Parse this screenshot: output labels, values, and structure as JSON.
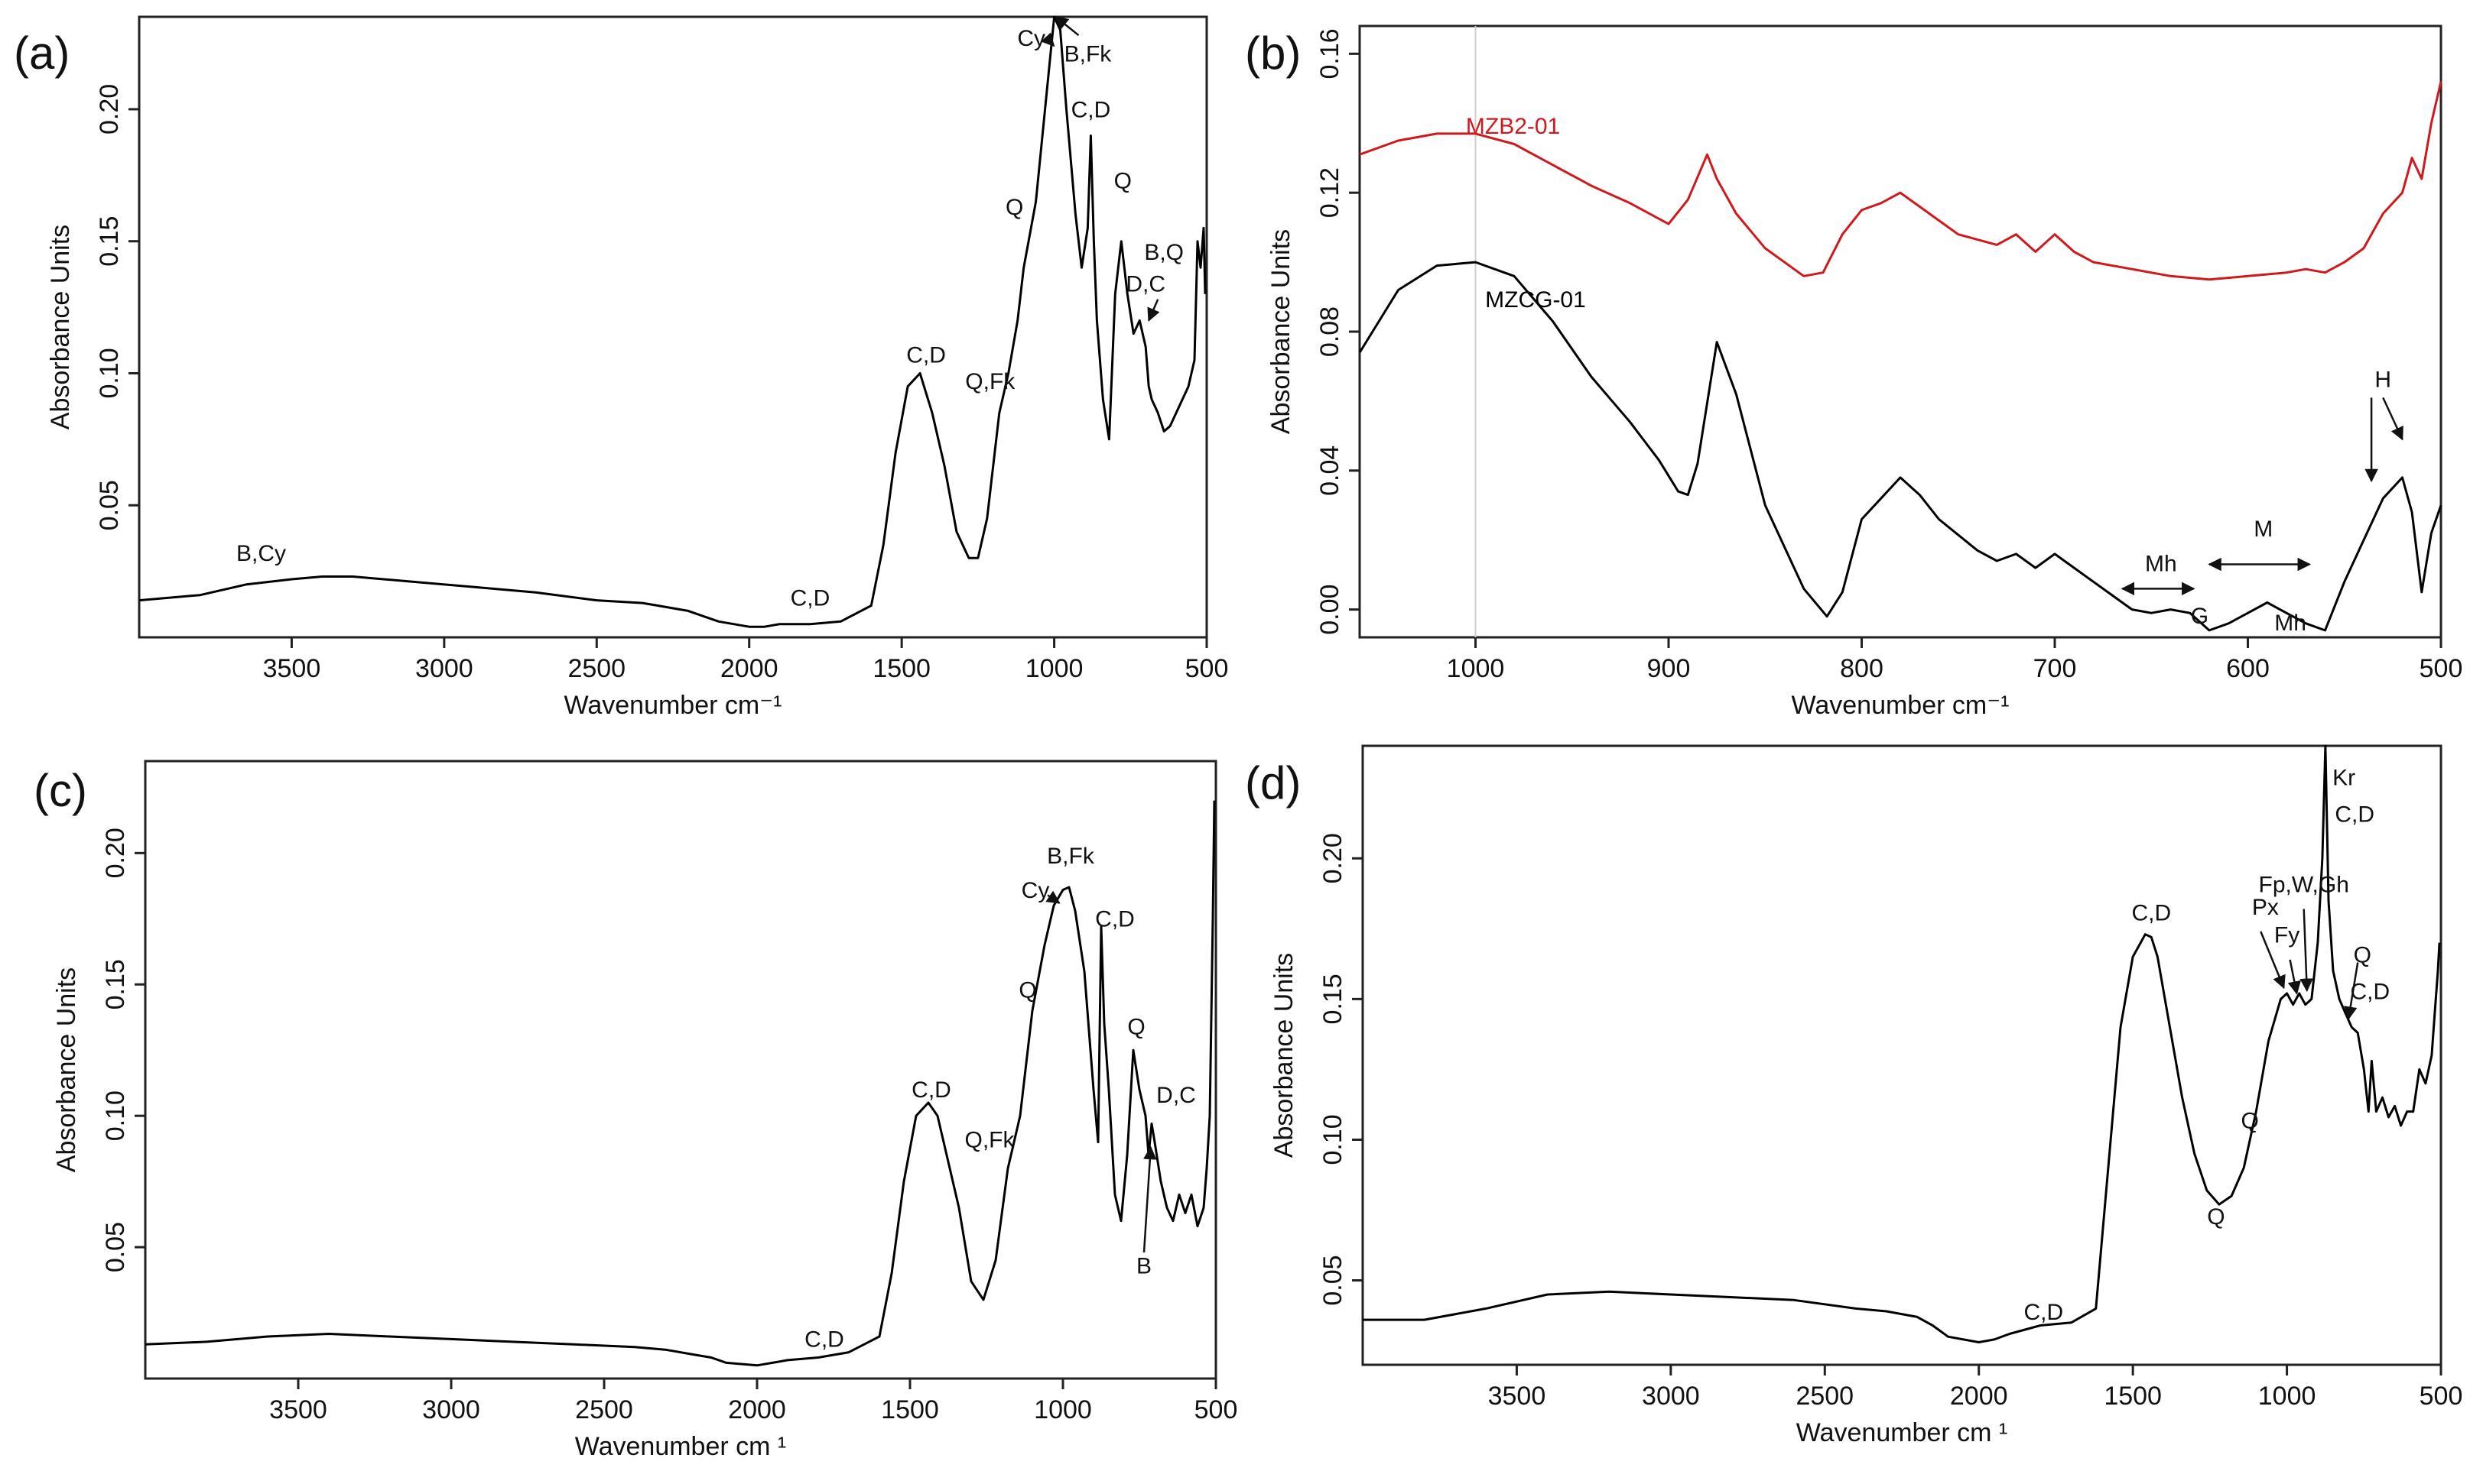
{
  "figure": {
    "background": "#ffffff"
  },
  "chart_data": [
    {
      "id": "a",
      "panel_label": "(a)",
      "type": "line",
      "xlabel": "Wavenumber cm⁻¹",
      "ylabel": "Absorbance Units",
      "xlim": [
        4000,
        500
      ],
      "ylim": [
        0.0,
        0.235
      ],
      "xticks": [
        3500,
        3000,
        2500,
        2000,
        1500,
        1000,
        500
      ],
      "xtick_labels": [
        "3500",
        "3000",
        "2500",
        "2000",
        "1500",
        "1000",
        "500"
      ],
      "yticks": [
        0.05,
        0.1,
        0.15,
        0.2
      ],
      "ytick_labels": [
        "0.05",
        "0.10",
        "0.15",
        "0.20"
      ],
      "series": [
        {
          "name": "spectrum",
          "color": "#000000",
          "x": [
            4000,
            3800,
            3650,
            3500,
            3400,
            3300,
            3100,
            2900,
            2700,
            2500,
            2350,
            2300,
            2200,
            2150,
            2100,
            2000,
            1950,
            1900,
            1800,
            1700,
            1600,
            1560,
            1520,
            1480,
            1440,
            1400,
            1360,
            1320,
            1280,
            1250,
            1220,
            1180,
            1150,
            1120,
            1100,
            1060,
            1030,
            1000,
            980,
            960,
            930,
            910,
            890,
            880,
            870,
            860,
            840,
            820,
            800,
            780,
            760,
            740,
            720,
            700,
            690,
            680,
            660,
            640,
            620,
            600,
            580,
            560,
            540,
            530,
            520,
            510,
            505
          ],
          "y": [
            0.014,
            0.016,
            0.02,
            0.022,
            0.023,
            0.023,
            0.021,
            0.019,
            0.017,
            0.014,
            0.013,
            0.012,
            0.01,
            0.008,
            0.006,
            0.004,
            0.004,
            0.005,
            0.005,
            0.006,
            0.012,
            0.035,
            0.07,
            0.095,
            0.1,
            0.085,
            0.065,
            0.04,
            0.03,
            0.03,
            0.045,
            0.085,
            0.1,
            0.12,
            0.14,
            0.165,
            0.2,
            0.235,
            0.23,
            0.2,
            0.16,
            0.14,
            0.155,
            0.19,
            0.15,
            0.12,
            0.09,
            0.075,
            0.13,
            0.15,
            0.13,
            0.115,
            0.12,
            0.11,
            0.095,
            0.09,
            0.085,
            0.078,
            0.08,
            0.085,
            0.09,
            0.095,
            0.105,
            0.15,
            0.14,
            0.155,
            0.13
          ]
        }
      ],
      "annotations": [
        {
          "text": "B,Cy",
          "x": 3600,
          "y": 0.029
        },
        {
          "text": "C,D",
          "x": 1800,
          "y": 0.012
        },
        {
          "text": "C,D",
          "x": 1420,
          "y": 0.104
        },
        {
          "text": "Q,Fk",
          "x": 1210,
          "y": 0.094
        },
        {
          "text": "Q",
          "x": 1130,
          "y": 0.16
        },
        {
          "text": "Cy",
          "x": 1075,
          "y": 0.224
        },
        {
          "text": "B,Fk",
          "x": 890,
          "y": 0.218
        },
        {
          "text": "C,D",
          "x": 880,
          "y": 0.197
        },
        {
          "text": "Q",
          "x": 775,
          "y": 0.17
        },
        {
          "text": "B,Q",
          "x": 640,
          "y": 0.143
        },
        {
          "text": "D,C",
          "x": 700,
          "y": 0.131
        }
      ],
      "arrows": [
        {
          "from": [
            1025,
            0.227
          ],
          "to": [
            1001,
            0.224
          ]
        },
        {
          "from": [
            920,
            0.228
          ],
          "to": [
            995,
            0.235
          ]
        },
        {
          "from": [
            660,
            0.128
          ],
          "to": [
            690,
            0.12
          ]
        }
      ]
    },
    {
      "id": "b",
      "panel_label": "(b)",
      "type": "line",
      "xlabel": "Wavenumber cm⁻¹",
      "ylabel": "Absorbance Units",
      "xlim": [
        1060,
        500
      ],
      "ylim": [
        -0.008,
        0.168
      ],
      "xticks": [
        1000,
        900,
        800,
        700,
        600,
        500
      ],
      "xtick_labels": [
        "1000",
        "900",
        "800",
        "700",
        "600",
        "500"
      ],
      "yticks": [
        0.0,
        0.04,
        0.08,
        0.12,
        0.16
      ],
      "ytick_labels": [
        "0.00",
        "0.04",
        "0.08",
        "0.12",
        "0.16"
      ],
      "reference_line_x": 1000,
      "series": [
        {
          "name": "MZB2-01",
          "color": "#d0191c",
          "x": [
            1060,
            1040,
            1020,
            1000,
            980,
            960,
            940,
            920,
            900,
            890,
            880,
            875,
            865,
            850,
            830,
            820,
            810,
            800,
            790,
            780,
            770,
            750,
            730,
            720,
            710,
            700,
            690,
            680,
            660,
            640,
            620,
            600,
            580,
            570,
            560,
            550,
            540,
            530,
            520,
            515,
            510,
            505,
            500
          ],
          "y": [
            0.131,
            0.135,
            0.137,
            0.137,
            0.134,
            0.128,
            0.122,
            0.117,
            0.111,
            0.118,
            0.131,
            0.124,
            0.114,
            0.104,
            0.096,
            0.097,
            0.108,
            0.115,
            0.117,
            0.12,
            0.116,
            0.108,
            0.105,
            0.108,
            0.103,
            0.108,
            0.103,
            0.1,
            0.098,
            0.096,
            0.095,
            0.096,
            0.097,
            0.098,
            0.097,
            0.1,
            0.104,
            0.114,
            0.12,
            0.13,
            0.124,
            0.14,
            0.152
          ]
        },
        {
          "name": "MZCG-01",
          "color": "#000000",
          "x": [
            1060,
            1040,
            1020,
            1000,
            980,
            960,
            940,
            920,
            905,
            895,
            890,
            885,
            875,
            865,
            850,
            830,
            818,
            810,
            800,
            790,
            780,
            770,
            760,
            740,
            730,
            720,
            710,
            700,
            695,
            690,
            680,
            670,
            660,
            650,
            640,
            630,
            620,
            610,
            600,
            590,
            580,
            570,
            560,
            550,
            540,
            530,
            520,
            515,
            510,
            505,
            500
          ],
          "y": [
            0.074,
            0.092,
            0.099,
            0.1,
            0.096,
            0.083,
            0.067,
            0.054,
            0.043,
            0.034,
            0.033,
            0.042,
            0.077,
            0.062,
            0.03,
            0.006,
            -0.002,
            0.005,
            0.026,
            0.032,
            0.038,
            0.033,
            0.026,
            0.017,
            0.014,
            0.016,
            0.012,
            0.016,
            0.014,
            0.012,
            0.008,
            0.004,
            0.0,
            -0.001,
            0.0,
            -0.001,
            -0.006,
            -0.004,
            -0.001,
            0.002,
            -0.001,
            -0.004,
            -0.006,
            0.008,
            0.02,
            0.032,
            0.038,
            0.028,
            0.005,
            0.022,
            0.03
          ]
        }
      ],
      "series_labels": [
        {
          "text": "MZB2-01",
          "color": "#d0191c",
          "x": 1005,
          "y": 0.137
        },
        {
          "text": "MZCG-01",
          "color": "#000000",
          "x": 995,
          "y": 0.087
        }
      ],
      "annotations": [
        {
          "text": "H",
          "x": 530,
          "y": 0.064
        },
        {
          "text": "M",
          "x": 592,
          "y": 0.021
        },
        {
          "text": "Mh",
          "x": 645,
          "y": 0.011
        },
        {
          "text": "G",
          "x": 625,
          "y": -0.004
        },
        {
          "text": "Mh",
          "x": 578,
          "y": -0.006
        }
      ],
      "arrows": [
        {
          "from": [
            536,
            0.061
          ],
          "to": [
            536,
            0.037
          ]
        },
        {
          "from": [
            530,
            0.061
          ],
          "to": [
            520,
            0.049
          ]
        }
      ],
      "double_arrows": [
        {
          "x1": 665,
          "x2": 628,
          "y": 0.006
        },
        {
          "x1": 620,
          "x2": 568,
          "y": 0.013
        }
      ]
    },
    {
      "id": "c",
      "panel_label": "(c)",
      "type": "line",
      "xlabel": "Wavenumber cm ¹",
      "ylabel": "Absorbance Units",
      "xlim": [
        4000,
        500
      ],
      "ylim": [
        0.0,
        0.235
      ],
      "xticks": [
        3500,
        3000,
        2500,
        2000,
        1500,
        1000,
        500
      ],
      "xtick_labels": [
        "3500",
        "3000",
        "2500",
        "2000",
        "1500",
        "1000",
        "500"
      ],
      "yticks": [
        0.05,
        0.1,
        0.15,
        0.2
      ],
      "ytick_labels": [
        "0.05",
        "0.10",
        "0.15",
        "0.20"
      ],
      "series": [
        {
          "name": "spectrum",
          "color": "#000000",
          "x": [
            4000,
            3800,
            3600,
            3400,
            3200,
            3000,
            2800,
            2600,
            2400,
            2300,
            2200,
            2150,
            2100,
            2000,
            1950,
            1900,
            1800,
            1700,
            1600,
            1560,
            1520,
            1480,
            1440,
            1410,
            1380,
            1340,
            1300,
            1260,
            1220,
            1180,
            1160,
            1140,
            1100,
            1060,
            1030,
            1000,
            980,
            960,
            930,
            900,
            885,
            875,
            865,
            850,
            830,
            810,
            790,
            770,
            750,
            730,
            720,
            710,
            700,
            680,
            660,
            640,
            620,
            600,
            580,
            560,
            540,
            530,
            520,
            510,
            505
          ],
          "y": [
            0.013,
            0.014,
            0.016,
            0.017,
            0.016,
            0.015,
            0.014,
            0.013,
            0.012,
            0.011,
            0.009,
            0.008,
            0.006,
            0.005,
            0.006,
            0.007,
            0.008,
            0.01,
            0.016,
            0.04,
            0.075,
            0.1,
            0.105,
            0.1,
            0.085,
            0.065,
            0.037,
            0.03,
            0.045,
            0.08,
            0.09,
            0.1,
            0.14,
            0.165,
            0.18,
            0.186,
            0.187,
            0.178,
            0.155,
            0.11,
            0.09,
            0.172,
            0.135,
            0.11,
            0.07,
            0.06,
            0.085,
            0.125,
            0.11,
            0.1,
            0.085,
            0.097,
            0.09,
            0.075,
            0.065,
            0.06,
            0.07,
            0.063,
            0.07,
            0.058,
            0.065,
            0.08,
            0.1,
            0.175,
            0.22
          ]
        }
      ],
      "annotations": [
        {
          "text": "C,D",
          "x": 1780,
          "y": 0.012
        },
        {
          "text": "C,D",
          "x": 1430,
          "y": 0.107
        },
        {
          "text": "Q,Fk",
          "x": 1240,
          "y": 0.088
        },
        {
          "text": "Q",
          "x": 1115,
          "y": 0.145
        },
        {
          "text": "Cy",
          "x": 1090,
          "y": 0.183
        },
        {
          "text": "B,Fk",
          "x": 975,
          "y": 0.196
        },
        {
          "text": "C,D",
          "x": 830,
          "y": 0.172
        },
        {
          "text": "Q",
          "x": 760,
          "y": 0.131
        },
        {
          "text": "D,C",
          "x": 630,
          "y": 0.105
        },
        {
          "text": "B",
          "x": 735,
          "y": 0.04
        }
      ],
      "arrows": [
        {
          "from": [
            1050,
            0.184
          ],
          "to": [
            1012,
            0.181
          ]
        },
        {
          "from": [
            735,
            0.048
          ],
          "to": [
            713,
            0.088
          ]
        }
      ]
    },
    {
      "id": "d",
      "panel_label": "(d)",
      "type": "line",
      "xlabel": "Wavenumber cm ¹",
      "ylabel": "Absorbance Units",
      "xlim": [
        4000,
        500
      ],
      "ylim": [
        0.02,
        0.24
      ],
      "xticks": [
        3500,
        3000,
        2500,
        2000,
        1500,
        1000,
        500
      ],
      "xtick_labels": [
        "3500",
        "3000",
        "2500",
        "2000",
        "1500",
        "1000",
        "500"
      ],
      "yticks": [
        0.05,
        0.1,
        0.15,
        0.2
      ],
      "ytick_labels": [
        "0.05",
        "0.10",
        "0.15",
        "0.20"
      ],
      "series": [
        {
          "name": "spectrum",
          "color": "#000000",
          "x": [
            4000,
            3800,
            3600,
            3400,
            3200,
            3000,
            2800,
            2600,
            2400,
            2300,
            2200,
            2150,
            2100,
            2000,
            1950,
            1900,
            1800,
            1700,
            1620,
            1580,
            1540,
            1500,
            1460,
            1440,
            1420,
            1380,
            1340,
            1300,
            1260,
            1220,
            1180,
            1140,
            1100,
            1060,
            1020,
            1000,
            980,
            960,
            940,
            920,
            900,
            885,
            875,
            865,
            850,
            830,
            810,
            790,
            770,
            750,
            735,
            725,
            710,
            690,
            670,
            650,
            630,
            610,
            590,
            570,
            550,
            530,
            520,
            510,
            505
          ],
          "y": [
            0.036,
            0.036,
            0.04,
            0.045,
            0.046,
            0.045,
            0.044,
            0.043,
            0.04,
            0.039,
            0.037,
            0.034,
            0.03,
            0.028,
            0.029,
            0.031,
            0.034,
            0.035,
            0.04,
            0.09,
            0.14,
            0.165,
            0.173,
            0.172,
            0.165,
            0.14,
            0.115,
            0.095,
            0.082,
            0.077,
            0.08,
            0.09,
            0.11,
            0.135,
            0.15,
            0.152,
            0.148,
            0.152,
            0.148,
            0.15,
            0.17,
            0.2,
            0.24,
            0.185,
            0.16,
            0.15,
            0.145,
            0.14,
            0.138,
            0.125,
            0.11,
            0.128,
            0.11,
            0.115,
            0.108,
            0.112,
            0.105,
            0.11,
            0.11,
            0.125,
            0.12,
            0.13,
            0.145,
            0.16,
            0.17
          ]
        }
      ],
      "annotations": [
        {
          "text": "C,D",
          "x": 1790,
          "y": 0.036
        },
        {
          "text": "C,D",
          "x": 1440,
          "y": 0.178
        },
        {
          "text": "Q",
          "x": 1230,
          "y": 0.07
        },
        {
          "text": "Q",
          "x": 1120,
          "y": 0.104
        },
        {
          "text": "Px",
          "x": 1070,
          "y": 0.18
        },
        {
          "text": "Fy",
          "x": 1000,
          "y": 0.17
        },
        {
          "text": "Fp,W,Gh",
          "x": 945,
          "y": 0.188
        },
        {
          "text": "Kr",
          "x": 815,
          "y": 0.226
        },
        {
          "text": "C,D",
          "x": 780,
          "y": 0.213
        },
        {
          "text": "Q",
          "x": 755,
          "y": 0.163
        },
        {
          "text": "C,D",
          "x": 730,
          "y": 0.15
        }
      ],
      "arrows": [
        {
          "from": [
            1085,
            0.174
          ],
          "to": [
            1010,
            0.154
          ]
        },
        {
          "from": [
            990,
            0.164
          ],
          "to": [
            968,
            0.152
          ]
        },
        {
          "from": [
            945,
            0.182
          ],
          "to": [
            935,
            0.153
          ]
        },
        {
          "from": [
            770,
            0.163
          ],
          "to": [
            800,
            0.143
          ]
        }
      ]
    }
  ]
}
